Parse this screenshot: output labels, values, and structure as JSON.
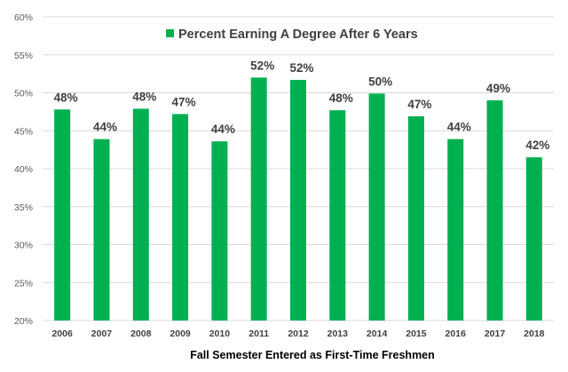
{
  "chart_data": {
    "type": "bar",
    "title": "",
    "xlabel": "Fall Semester Entered as First-Time Freshmen",
    "ylabel": "",
    "ylim": [
      20,
      60
    ],
    "ytick_step": 5,
    "yticks": [
      "20%",
      "25%",
      "30%",
      "35%",
      "40%",
      "45%",
      "50%",
      "55%",
      "60%"
    ],
    "grid": true,
    "legend_position": "top-center",
    "categories": [
      "2006",
      "2007",
      "2008",
      "2009",
      "2010",
      "2011",
      "2012",
      "2013",
      "2014",
      "2015",
      "2016",
      "2017",
      "2018"
    ],
    "series": [
      {
        "name": "Percent Earning A Degree After 6 Years",
        "color": "#00b050",
        "values": [
          47.8,
          43.9,
          47.9,
          47.2,
          43.6,
          52.0,
          51.7,
          47.7,
          49.9,
          46.9,
          43.9,
          49.0,
          41.5
        ],
        "data_labels": [
          "48%",
          "44%",
          "48%",
          "47%",
          "44%",
          "52%",
          "52%",
          "48%",
          "50%",
          "47%",
          "44%",
          "49%",
          "42%"
        ]
      }
    ]
  }
}
